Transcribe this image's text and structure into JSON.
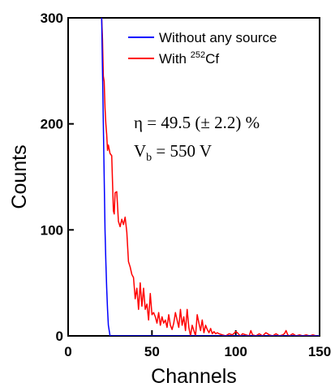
{
  "chart_data": {
    "type": "line",
    "xlabel": "Channels",
    "ylabel": "Counts",
    "xlim": [
      0,
      150
    ],
    "ylim": [
      0,
      300
    ],
    "xticks": [
      0,
      50,
      100,
      150
    ],
    "yticks": [
      0,
      100,
      200,
      300
    ],
    "legend_position": "top-right",
    "annotations": {
      "eta": "η = 49.5 (± 2.2) %",
      "vb_main": "V",
      "vb_sub": "b",
      "vb_rest": " = 550 V"
    },
    "series": [
      {
        "name": "Without any source",
        "label_main": "Without any source",
        "color": "#0000ff",
        "x": [
          20,
          20.5,
          21,
          21.5,
          22,
          22.5,
          23,
          23.5,
          24,
          25,
          150
        ],
        "y": [
          300,
          250,
          200,
          150,
          100,
          70,
          45,
          25,
          10,
          0,
          0
        ]
      },
      {
        "name": "With 252Cf",
        "label_prefix": "With ",
        "label_sup": "252",
        "label_suffix": "Cf",
        "color": "#ff0000",
        "x": [
          20,
          20.5,
          21,
          21.5,
          22,
          22.5,
          23,
          23.5,
          24,
          25,
          26,
          27,
          27.5,
          28,
          29,
          30,
          31,
          32,
          33,
          34,
          35,
          36,
          37,
          38,
          39,
          40,
          41,
          42,
          43,
          44,
          45,
          46,
          47,
          48,
          49,
          50,
          51,
          52,
          53,
          54,
          55,
          56,
          57,
          58,
          59,
          60,
          61,
          62,
          63,
          64,
          65,
          66,
          67,
          68,
          69,
          70,
          71,
          72,
          73,
          74,
          75,
          76,
          77,
          78,
          79,
          80,
          81,
          82,
          83,
          84,
          85,
          86,
          87,
          88,
          89,
          90,
          92,
          94,
          96,
          98,
          100,
          101,
          102,
          103,
          104,
          106,
          108,
          109,
          110,
          112,
          114,
          116,
          118,
          120,
          122,
          124,
          126,
          128,
          129,
          130,
          131,
          132,
          134,
          136,
          138,
          140,
          142,
          144,
          146,
          148,
          150
        ],
        "y": [
          300,
          280,
          245,
          240,
          215,
          200,
          190,
          175,
          180,
          172,
          170,
          118,
          115,
          135,
          136,
          108,
          103,
          110,
          105,
          112,
          98,
          70,
          65,
          58,
          55,
          35,
          45,
          25,
          50,
          28,
          45,
          25,
          30,
          15,
          40,
          20,
          22,
          18,
          12,
          22,
          10,
          18,
          12,
          15,
          8,
          20,
          10,
          6,
          12,
          22,
          15,
          8,
          25,
          10,
          18,
          5,
          25,
          8,
          0,
          10,
          5,
          0,
          20,
          12,
          5,
          15,
          3,
          10,
          6,
          3,
          7,
          2,
          4,
          2,
          3,
          2,
          1,
          0,
          2,
          1,
          4,
          3,
          1,
          0,
          2,
          1,
          0,
          5,
          1,
          0,
          2,
          0,
          3,
          1,
          0,
          2,
          0,
          1,
          2,
          5,
          1,
          0,
          2,
          0,
          1,
          0,
          1,
          0,
          1,
          0,
          0
        ]
      }
    ]
  }
}
